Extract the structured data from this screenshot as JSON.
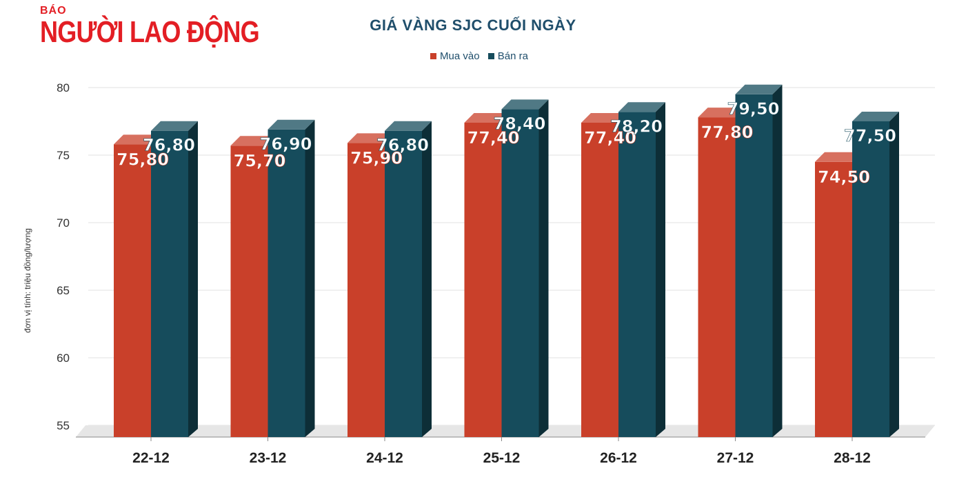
{
  "logo": {
    "small": "BÁO",
    "big": "NGƯỜI LAO ĐỘNG"
  },
  "chart_data": {
    "type": "bar",
    "title": "GIÁ VÀNG SJC CUỐI NGÀY",
    "ylabel": "đơn vị tính: triệu đồng/lượng",
    "xlabel": "",
    "categories": [
      "22-12",
      "23-12",
      "24-12",
      "25-12",
      "26-12",
      "27-12",
      "28-12"
    ],
    "series": [
      {
        "name": "Mua vào",
        "color": "#c9402a",
        "values": [
          75.8,
          75.7,
          75.9,
          77.4,
          77.4,
          77.8,
          74.5
        ],
        "labels": [
          "75,80",
          "75,70",
          "75,90",
          "77,40",
          "77,40",
          "77,80",
          "74,50"
        ]
      },
      {
        "name": "Bán ra",
        "color": "#164c5c",
        "values": [
          76.8,
          76.9,
          76.8,
          78.4,
          78.2,
          79.5,
          77.5
        ],
        "labels": [
          "76,80",
          "76,90",
          "76,80",
          "78,40",
          "78,20",
          "79,50",
          "77,50"
        ]
      }
    ],
    "yticks": [
      55,
      60,
      65,
      70,
      75,
      80
    ],
    "ylim": [
      55,
      80
    ],
    "grid": true,
    "legend": "top-center"
  }
}
